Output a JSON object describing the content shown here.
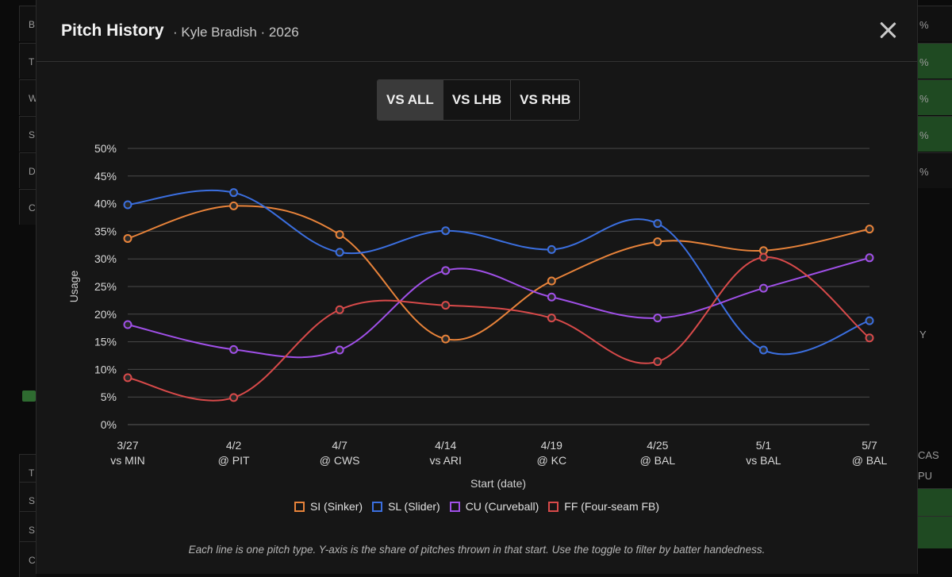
{
  "modal": {
    "title": "Pitch History",
    "subtitle": "· Kyle Bradish · 2026",
    "toggle": [
      {
        "label": "VS ALL",
        "active": true
      },
      {
        "label": "VS LHB",
        "active": false
      },
      {
        "label": "VS RHB",
        "active": false
      }
    ],
    "footnote": "Each line is one pitch type. Y-axis is the share of pitches thrown in that start. Use the toggle to filter by batter handedness."
  },
  "background": {
    "left_letters": [
      "B",
      "T",
      "W",
      "S",
      "D",
      "C",
      "T",
      "S",
      "S",
      "C"
    ],
    "right_pcts": [
      "%",
      "%",
      "%",
      "%",
      "%"
    ],
    "right_labels": [
      "Y",
      "CAS",
      "PU"
    ]
  },
  "chart_data": {
    "type": "line",
    "xlabel": "Start (date)",
    "ylabel": "Usage",
    "ylim": [
      0,
      50
    ],
    "yticks": [
      "0%",
      "5%",
      "10%",
      "15%",
      "20%",
      "25%",
      "30%",
      "35%",
      "40%",
      "45%",
      "50%"
    ],
    "categories": [
      [
        "3/27",
        "vs MIN"
      ],
      [
        "4/2",
        "@ PIT"
      ],
      [
        "4/7",
        "@ CWS"
      ],
      [
        "4/14",
        "vs ARI"
      ],
      [
        "4/19",
        "@ KC"
      ],
      [
        "4/25",
        "@ BAL"
      ],
      [
        "5/1",
        "vs BAL"
      ],
      [
        "5/7",
        "@ BAL"
      ]
    ],
    "grid": true,
    "legend_position": "bottom-center",
    "series": [
      {
        "name": "SI (Sinker)",
        "color": "#e8833a",
        "values": [
          33.7,
          39.6,
          34.4,
          15.5,
          26.0,
          33.1,
          31.5,
          35.4
        ]
      },
      {
        "name": "SL (Slider)",
        "color": "#3b6fe0",
        "values": [
          39.8,
          42.0,
          31.2,
          35.1,
          31.7,
          36.4,
          13.5,
          18.8
        ]
      },
      {
        "name": "CU (Curveball)",
        "color": "#a050e8",
        "values": [
          18.1,
          13.6,
          13.5,
          27.9,
          23.1,
          19.3,
          24.7,
          30.2
        ]
      },
      {
        "name": "FF (Four-seam FB)",
        "color": "#d84a4a",
        "values": [
          8.5,
          4.9,
          20.8,
          21.6,
          19.3,
          11.4,
          30.3,
          15.7
        ]
      }
    ]
  }
}
